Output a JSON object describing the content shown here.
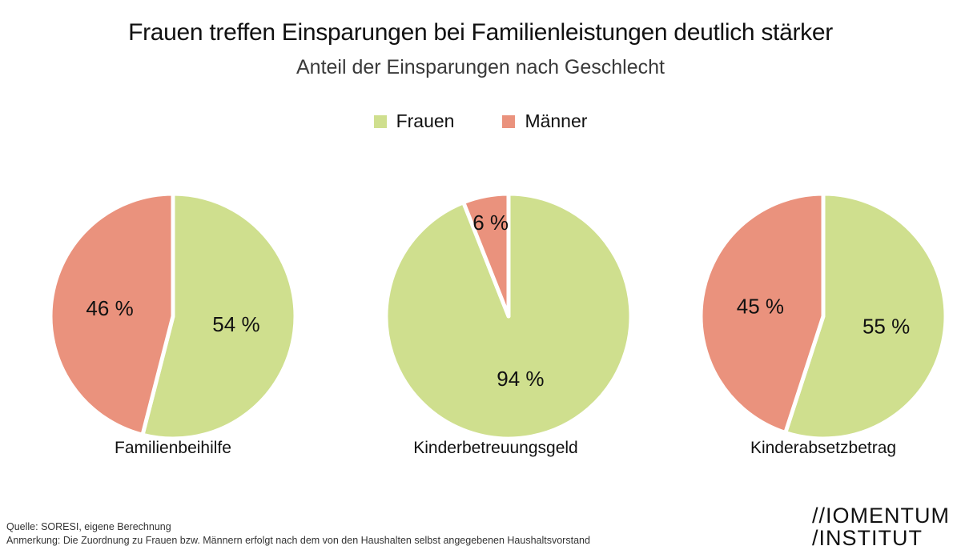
{
  "title": "Frauen treffen Einsparungen bei Familienleistungen deutlich stärker",
  "subtitle": "Anteil der Einsparungen nach Geschlecht",
  "legend": [
    {
      "label": "Frauen",
      "color": "#cfdf8e"
    },
    {
      "label": "Männer",
      "color": "#ea927d"
    }
  ],
  "chart_data": [
    {
      "type": "pie",
      "title": "Familienbeihilfe",
      "series": [
        {
          "name": "Frauen",
          "value": 54,
          "label": "54 %"
        },
        {
          "name": "Männer",
          "value": 46,
          "label": "46 %"
        }
      ]
    },
    {
      "type": "pie",
      "title": "Kinderbetreuungsgeld",
      "series": [
        {
          "name": "Frauen",
          "value": 94,
          "label": "94 %"
        },
        {
          "name": "Männer",
          "value": 6,
          "label": "6 %"
        }
      ]
    },
    {
      "type": "pie",
      "title": "Kinderabsetzbetrag",
      "series": [
        {
          "name": "Frauen",
          "value": 55,
          "label": "55 %"
        },
        {
          "name": "Männer",
          "value": 45,
          "label": "45 %"
        }
      ]
    }
  ],
  "footer": {
    "source": "Quelle: SORESI, eigene Berechnung",
    "note": "Anmerkung: Die Zuordnung zu Frauen bzw. Männern erfolgt nach dem von den Haushalten selbst angegebenen Haushaltsvorstand"
  },
  "logo": {
    "line1": "//IOMENTUM",
    "line2": "/INSTITUT"
  }
}
